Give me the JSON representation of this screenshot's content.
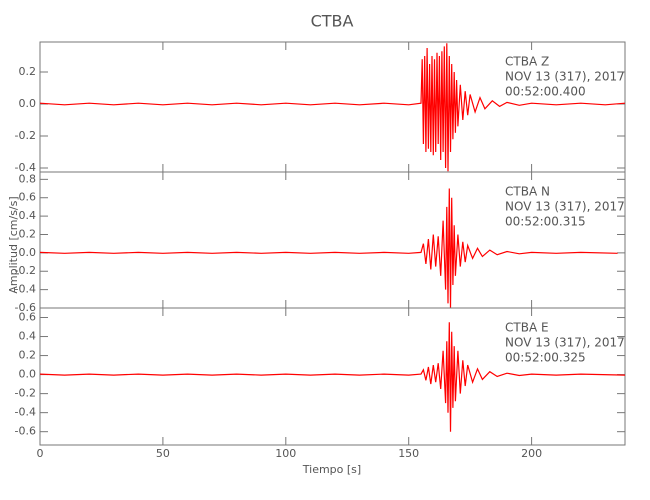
{
  "chart_data": [
    {
      "type": "line",
      "title": "CTBA",
      "color": "#ff0000",
      "annotations": [
        "CTBA   Z",
        "NOV 13 (317), 2017",
        "00:52:00.400"
      ],
      "xlim": [
        0,
        238
      ],
      "ylim": [
        -0.425,
        0.3875
      ],
      "yticks": [
        0.2,
        {
          "value": 0,
          "label": "0.0"
        },
        -0.2,
        -0.4
      ],
      "x": [
        0,
        10,
        20,
        30,
        40,
        50,
        60,
        70,
        80,
        90,
        100,
        110,
        120,
        130,
        140,
        150,
        155,
        155.5,
        156,
        156.5,
        157,
        157.5,
        158,
        158.5,
        159,
        159.5,
        160,
        160.5,
        161,
        161.5,
        162,
        162.5,
        163,
        163.5,
        164,
        164.5,
        165,
        165.5,
        166,
        166.5,
        167,
        167.5,
        168,
        168.5,
        169,
        169.5,
        170,
        171,
        172,
        173,
        174,
        175,
        177,
        179,
        181,
        184,
        187,
        190,
        195,
        200,
        210,
        220,
        230,
        238
      ],
      "values": [
        0.005,
        -0.005,
        0.005,
        -0.005,
        0.005,
        -0.005,
        0.005,
        -0.005,
        0.005,
        -0.005,
        0.005,
        -0.005,
        0.005,
        -0.005,
        0.005,
        -0.005,
        0.005,
        0.28,
        -0.25,
        0.3,
        -0.3,
        0.35,
        -0.28,
        0.25,
        -0.3,
        0.3,
        -0.32,
        0.28,
        -0.3,
        0.32,
        -0.25,
        0.3,
        -0.35,
        0.33,
        -0.3,
        0.36,
        -0.4,
        0.38,
        -0.42,
        0.3,
        -0.3,
        0.25,
        -0.22,
        0.2,
        -0.18,
        0.15,
        -0.14,
        0.12,
        -0.1,
        0.08,
        -0.07,
        0.06,
        -0.05,
        0.04,
        -0.03,
        0.02,
        -0.015,
        0.01,
        -0.008,
        0.005,
        -0.005,
        0.005,
        -0.005,
        0.005
      ]
    },
    {
      "type": "line",
      "ylabel": "Amplitud [cm/s/s]",
      "color": "#ff0000",
      "annotations": [
        "CTBA   N",
        "NOV 13 (317), 2017",
        "00:52:00.315"
      ],
      "xlim": [
        0,
        238
      ],
      "ylim": [
        -0.6,
        0.88
      ],
      "yticks": [
        0.8,
        0.6,
        0.4,
        0.2,
        {
          "value": 0,
          "label": "0.0"
        },
        -0.2,
        -0.4,
        -0.6
      ],
      "x": [
        0,
        10,
        20,
        30,
        40,
        50,
        60,
        70,
        80,
        90,
        100,
        110,
        120,
        130,
        140,
        150,
        155,
        156,
        157,
        158,
        159,
        160,
        161,
        162,
        163,
        164,
        165,
        165.5,
        166,
        166.5,
        167,
        167.5,
        168,
        168.5,
        169,
        170,
        171,
        172,
        173,
        174,
        176,
        178,
        180,
        183,
        186,
        190,
        195,
        200,
        210,
        220,
        235
      ],
      "values": [
        0.005,
        -0.005,
        0.005,
        -0.005,
        0.005,
        -0.005,
        0.005,
        -0.005,
        0.005,
        -0.005,
        0.005,
        -0.005,
        0.005,
        -0.005,
        0.005,
        -0.005,
        0.005,
        0.1,
        -0.12,
        0.15,
        -0.18,
        0.2,
        -0.15,
        0.18,
        -0.25,
        0.35,
        -0.4,
        0.5,
        -0.55,
        0.7,
        -0.6,
        0.6,
        -0.35,
        0.3,
        -0.25,
        0.2,
        -0.15,
        0.12,
        -0.1,
        0.08,
        -0.06,
        0.05,
        -0.04,
        0.03,
        -0.02,
        0.015,
        -0.01,
        0.005,
        -0.005,
        0.005,
        -0.005
      ]
    },
    {
      "type": "line",
      "xlabel": "Tiempo [s]",
      "color": "#ff0000",
      "annotations": [
        "CTBA   E",
        "NOV 13 (317), 2017",
        "00:52:00.325"
      ],
      "xlim": [
        0,
        238
      ],
      "ylim": [
        -0.74,
        0.7
      ],
      "xticks": [
        0,
        50,
        100,
        150,
        200
      ],
      "yticks": [
        0.6,
        0.4,
        0.2,
        {
          "value": 0,
          "label": "0.0"
        },
        -0.2,
        -0.4,
        -0.6
      ],
      "x": [
        0,
        10,
        20,
        30,
        40,
        50,
        60,
        70,
        80,
        90,
        100,
        110,
        120,
        130,
        140,
        150,
        155,
        156,
        157,
        158,
        159,
        160,
        161,
        162,
        163,
        164,
        165,
        165.5,
        166,
        166.5,
        167,
        167.5,
        168,
        168.5,
        169,
        170,
        171,
        172,
        173,
        174,
        176,
        178,
        180,
        183,
        186,
        190,
        195,
        200,
        210,
        220,
        238
      ],
      "values": [
        0.005,
        -0.005,
        0.005,
        -0.005,
        0.005,
        -0.005,
        0.005,
        -0.005,
        0.005,
        -0.005,
        0.005,
        -0.005,
        0.005,
        -0.005,
        0.005,
        -0.005,
        0.005,
        0.05,
        -0.06,
        0.08,
        -0.1,
        0.1,
        -0.08,
        0.12,
        -0.15,
        0.25,
        -0.3,
        0.35,
        -0.4,
        0.55,
        -0.6,
        0.45,
        -0.35,
        0.3,
        -0.28,
        0.25,
        -0.2,
        0.15,
        -0.12,
        0.1,
        -0.08,
        0.06,
        -0.05,
        0.03,
        -0.02,
        0.015,
        -0.01,
        0.005,
        -0.005,
        0.005,
        -0.005
      ]
    }
  ]
}
